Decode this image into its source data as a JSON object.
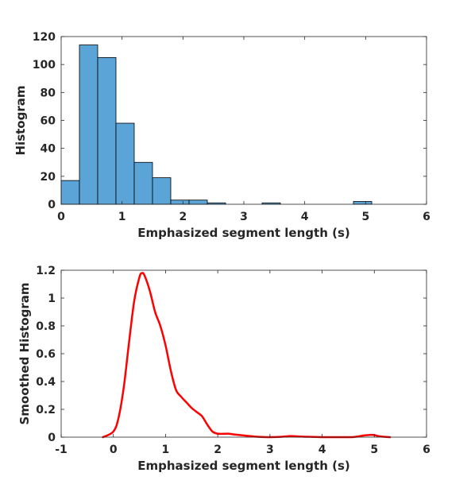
{
  "chart_data": [
    {
      "type": "bar",
      "title": "",
      "xlabel": "Emphasized segment length (s)",
      "ylabel": "Histogram",
      "xlim": [
        0,
        6
      ],
      "ylim": [
        0,
        120
      ],
      "xticks": [
        0,
        1,
        2,
        3,
        4,
        5,
        6
      ],
      "yticks": [
        0,
        20,
        40,
        60,
        80,
        100,
        120
      ],
      "bin_width": 0.3,
      "bin_edges": [
        0,
        0.3,
        0.6,
        0.9,
        1.2,
        1.5,
        1.8,
        2.1,
        2.4,
        2.7,
        3.0,
        3.3,
        3.6,
        3.9,
        4.2,
        4.5,
        4.8,
        5.1
      ],
      "values": [
        17,
        114,
        105,
        58,
        30,
        19,
        3,
        3,
        1,
        0,
        0,
        1,
        0,
        0,
        0,
        0,
        2
      ],
      "color": "#5ba4d8",
      "grid": false
    },
    {
      "type": "line",
      "title": "",
      "xlabel": "Emphasized segment length (s)",
      "ylabel": "Smoothed Histogram",
      "xlim": [
        -1,
        6
      ],
      "ylim": [
        0,
        1.2
      ],
      "xticks": [
        -1,
        0,
        1,
        2,
        3,
        4,
        5,
        6
      ],
      "yticks": [
        0,
        0.2,
        0.4,
        0.6,
        0.8,
        1,
        1.2
      ],
      "ytick_labels": [
        "0",
        "0.2",
        "0.4",
        "0.6",
        "0.8",
        "1",
        "1.2"
      ],
      "color": "#ff0000",
      "grid": false,
      "x": [
        -0.2,
        0.0,
        0.1,
        0.2,
        0.3,
        0.4,
        0.5,
        0.55,
        0.6,
        0.7,
        0.8,
        0.9,
        1.0,
        1.1,
        1.2,
        1.3,
        1.4,
        1.5,
        1.6,
        1.7,
        1.8,
        1.9,
        2.0,
        2.1,
        2.2,
        2.3,
        2.5,
        2.8,
        3.0,
        3.2,
        3.4,
        3.6,
        3.8,
        4.0,
        4.3,
        4.6,
        4.8,
        4.9,
        5.0,
        5.1,
        5.3
      ],
      "y": [
        0.0,
        0.04,
        0.14,
        0.36,
        0.68,
        0.98,
        1.15,
        1.18,
        1.16,
        1.05,
        0.9,
        0.8,
        0.66,
        0.48,
        0.34,
        0.29,
        0.25,
        0.21,
        0.18,
        0.15,
        0.09,
        0.04,
        0.025,
        0.024,
        0.025,
        0.02,
        0.012,
        0.002,
        0.0,
        0.002,
        0.008,
        0.004,
        0.002,
        0.0,
        0.0,
        0.001,
        0.012,
        0.016,
        0.015,
        0.006,
        0.0
      ]
    }
  ]
}
